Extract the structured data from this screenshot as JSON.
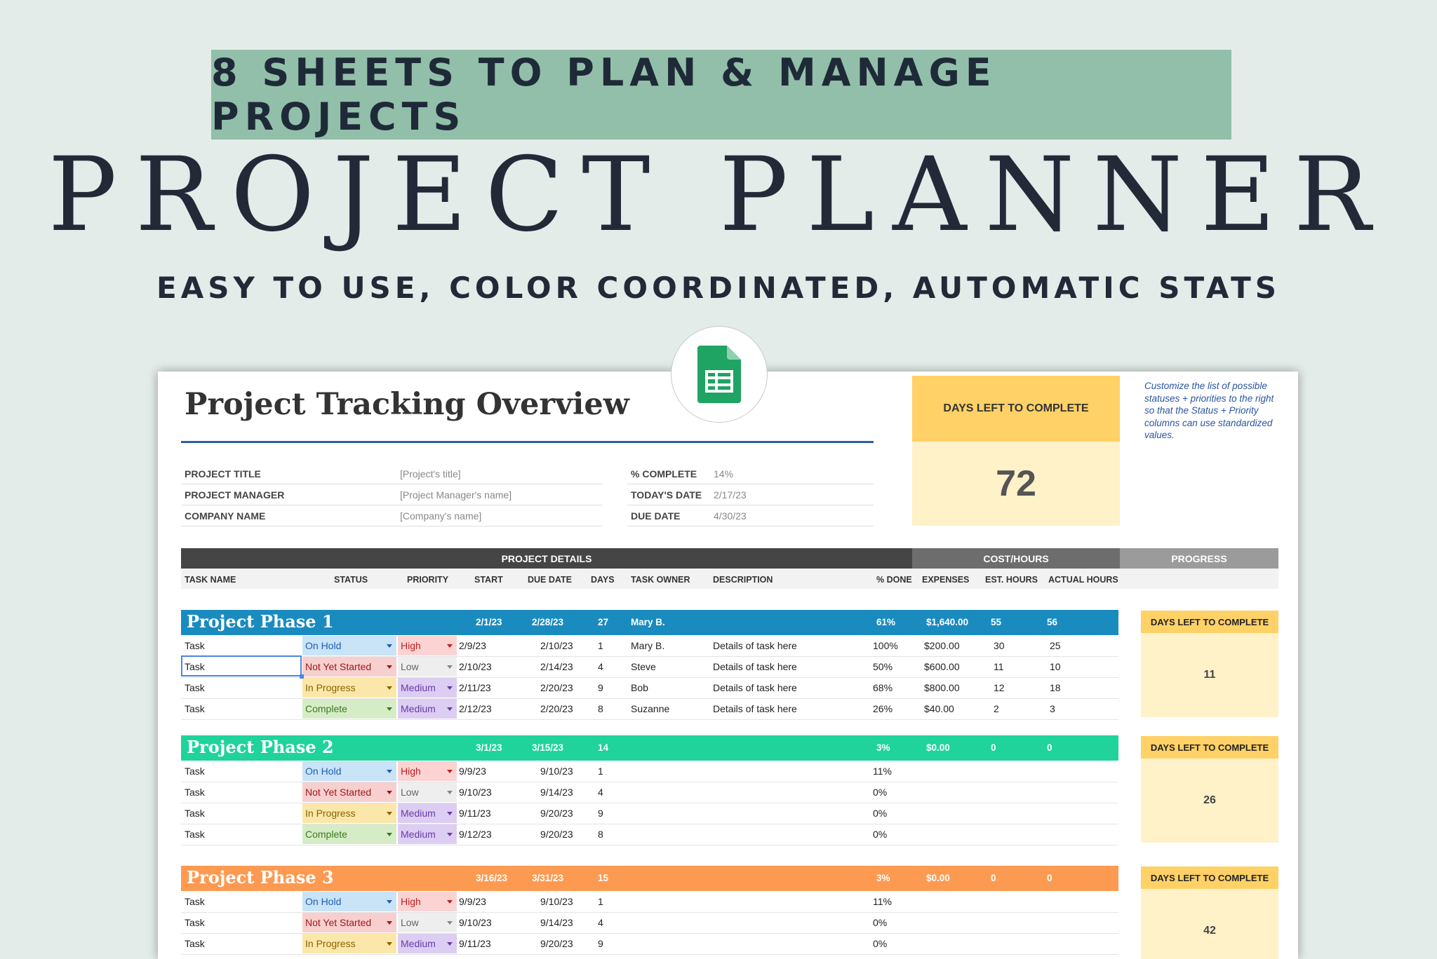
{
  "banner": "8 SHEETS TO PLAN & MANAGE PROJECTS",
  "title": "PROJECT PLANNER",
  "subtitle": "EASY TO USE, COLOR COORDINATED, AUTOMATIC STATS",
  "logo_icon": "google-sheets-icon",
  "sheet": {
    "heading": "Project Tracking Overview",
    "info_left": [
      {
        "label": "PROJECT TITLE",
        "value": "[Project's title]"
      },
      {
        "label": "PROJECT MANAGER",
        "value": "[Project Manager's name]"
      },
      {
        "label": "COMPANY NAME",
        "value": "[Company's name]"
      }
    ],
    "info_right": [
      {
        "label": "% COMPLETE",
        "value": "14%"
      },
      {
        "label": "TODAY'S DATE",
        "value": "2/17/23"
      },
      {
        "label": "DUE DATE",
        "value": "4/30/23"
      }
    ],
    "days_left": {
      "label": "DAYS LEFT TO COMPLETE",
      "value": "72"
    },
    "note": "Customize the list of possible statuses + priorities to the right so that the Status + Priority columns can use standardized values.",
    "sections": {
      "details": "PROJECT DETAILS",
      "cost": "COST/HOURS",
      "progress": "PROGRESS"
    },
    "columns": [
      "TASK NAME",
      "STATUS",
      "PRIORITY",
      "START",
      "DUE DATE",
      "DAYS",
      "TASK OWNER",
      "DESCRIPTION",
      "% DONE",
      "EXPENSES",
      "EST. HOURS",
      "ACTUAL HOURS"
    ],
    "colors": {
      "phase1": "#1a8bbf",
      "phase2": "#1fd39a",
      "phase3": "#fd9a52",
      "dark": "#454545",
      "mid": "#6d6d6d",
      "light": "#9b9b9b"
    },
    "phases": [
      {
        "name": "Project Phase 1",
        "start": "2/1/23",
        "due": "2/28/23",
        "days": "27",
        "owner": "Mary B.",
        "done": "61%",
        "expenses": "$1,640.00",
        "est": "55",
        "actual": "56",
        "side_label": "DAYS LEFT TO COMPLETE",
        "side_value": "11",
        "tasks": [
          {
            "name": "Task",
            "status": "On Hold",
            "priority": "High",
            "start": "2/9/23",
            "due": "2/10/23",
            "days": "1",
            "owner": "Mary B.",
            "desc": "Details of task here",
            "done": "100%",
            "expenses": "$200.00",
            "est": "30",
            "actual": "25"
          },
          {
            "name": "Task",
            "status": "Not Yet Started",
            "priority": "Low",
            "start": "2/10/23",
            "due": "2/14/23",
            "days": "4",
            "owner": "Steve",
            "desc": "Details of task here",
            "done": "50%",
            "expenses": "$600.00",
            "est": "11",
            "actual": "10"
          },
          {
            "name": "Task",
            "status": "In Progress",
            "priority": "Medium",
            "start": "2/11/23",
            "due": "2/20/23",
            "days": "9",
            "owner": "Bob",
            "desc": "Details of task here",
            "done": "68%",
            "expenses": "$800.00",
            "est": "12",
            "actual": "18"
          },
          {
            "name": "Task",
            "status": "Complete",
            "priority": "Medium",
            "start": "2/12/23",
            "due": "2/20/23",
            "days": "8",
            "owner": "Suzanne",
            "desc": "Details of task here",
            "done": "26%",
            "expenses": "$40.00",
            "est": "2",
            "actual": "3"
          }
        ]
      },
      {
        "name": "Project Phase 2",
        "start": "3/1/23",
        "due": "3/15/23",
        "days": "14",
        "owner": "",
        "done": "3%",
        "expenses": "$0.00",
        "est": "0",
        "actual": "0",
        "side_label": "DAYS LEFT TO COMPLETE",
        "side_value": "26",
        "tasks": [
          {
            "name": "Task",
            "status": "On Hold",
            "priority": "High",
            "start": "9/9/23",
            "due": "9/10/23",
            "days": "1",
            "owner": "",
            "desc": "",
            "done": "11%",
            "expenses": "",
            "est": "",
            "actual": ""
          },
          {
            "name": "Task",
            "status": "Not Yet Started",
            "priority": "Low",
            "start": "9/10/23",
            "due": "9/14/23",
            "days": "4",
            "owner": "",
            "desc": "",
            "done": "0%",
            "expenses": "",
            "est": "",
            "actual": ""
          },
          {
            "name": "Task",
            "status": "In Progress",
            "priority": "Medium",
            "start": "9/11/23",
            "due": "9/20/23",
            "days": "9",
            "owner": "",
            "desc": "",
            "done": "0%",
            "expenses": "",
            "est": "",
            "actual": ""
          },
          {
            "name": "Task",
            "status": "Complete",
            "priority": "Medium",
            "start": "9/12/23",
            "due": "9/20/23",
            "days": "8",
            "owner": "",
            "desc": "",
            "done": "0%",
            "expenses": "",
            "est": "",
            "actual": ""
          }
        ]
      },
      {
        "name": "Project Phase 3",
        "start": "3/16/23",
        "due": "3/31/23",
        "days": "15",
        "owner": "",
        "done": "3%",
        "expenses": "$0.00",
        "est": "0",
        "actual": "0",
        "side_label": "DAYS LEFT TO COMPLETE",
        "side_value": "42",
        "tasks": [
          {
            "name": "Task",
            "status": "On Hold",
            "priority": "High",
            "start": "9/9/23",
            "due": "9/10/23",
            "days": "1",
            "owner": "",
            "desc": "",
            "done": "11%",
            "expenses": "",
            "est": "",
            "actual": ""
          },
          {
            "name": "Task",
            "status": "Not Yet Started",
            "priority": "Low",
            "start": "9/10/23",
            "due": "9/14/23",
            "days": "4",
            "owner": "",
            "desc": "",
            "done": "0%",
            "expenses": "",
            "est": "",
            "actual": ""
          },
          {
            "name": "Task",
            "status": "In Progress",
            "priority": "Medium",
            "start": "9/11/23",
            "due": "9/20/23",
            "days": "9",
            "owner": "",
            "desc": "",
            "done": "0%",
            "expenses": "",
            "est": "",
            "actual": ""
          }
        ]
      }
    ]
  }
}
